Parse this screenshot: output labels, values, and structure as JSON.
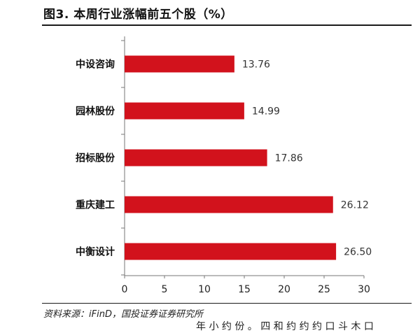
{
  "title": "图3. 本周行业涨幅前五个股（%）",
  "source": "资料来源：iFinD，国投证券证券研究所",
  "cut_text": "年 小 约 份 。 四 和 约 约 约 口 斗 木 口",
  "chart_data": {
    "type": "bar",
    "orientation": "horizontal",
    "title": "图3. 本周行业涨幅前五个股（%）",
    "categories": [
      "中设咨询",
      "园林股份",
      "招标股份",
      "重庆建工",
      "中衡设计"
    ],
    "values": [
      13.76,
      14.99,
      17.86,
      26.12,
      26.5
    ],
    "value_labels": [
      "13.76",
      "14.99",
      "17.86",
      "26.12",
      "26.50"
    ],
    "xlim": [
      0,
      30
    ],
    "xticks": [
      "0",
      "5",
      "10",
      "15",
      "20",
      "25",
      "30"
    ],
    "bar_color": "#d2121c",
    "grid": false,
    "legend": "none"
  }
}
